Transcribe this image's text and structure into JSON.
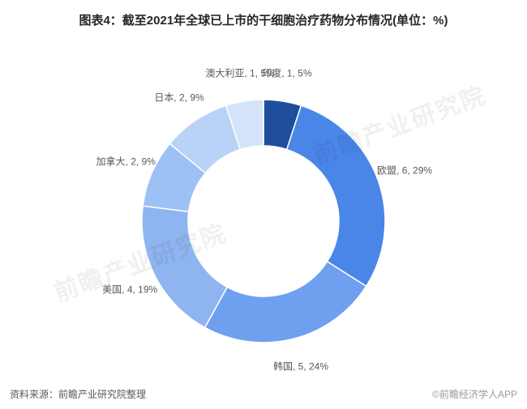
{
  "title": {
    "text": "图表4：截至2021年全球已上市的干细胞治疗药物分布情况(单位：%)",
    "fontsize": 15,
    "color": "#333333"
  },
  "footer": {
    "source_label": "资料来源：",
    "source_text": "前瞻产业研究院整理",
    "copyright": "©前瞻经济学人APP"
  },
  "watermark": {
    "text": "前瞻产业研究院"
  },
  "chart": {
    "type": "donut",
    "start_angle_deg": 0,
    "direction": "clockwise",
    "inner_radius_ratio": 0.62,
    "outer_radius": 150,
    "background_color": "#ffffff",
    "label_fontsize": 12,
    "label_color": "#595959",
    "slices": [
      {
        "name": "印度",
        "count": 1,
        "percent": 5,
        "color": "#1f4e9c",
        "label": "印度, 1, 5%"
      },
      {
        "name": "欧盟",
        "count": 6,
        "percent": 29,
        "color": "#4a86e8",
        "label": "欧盟, 6, 29%"
      },
      {
        "name": "韩国",
        "count": 5,
        "percent": 24,
        "color": "#6fa0ef",
        "label": "韩国, 5, 24%"
      },
      {
        "name": "美国",
        "count": 4,
        "percent": 19,
        "color": "#8fb5f0",
        "label": "美国, 4, 19%"
      },
      {
        "name": "加拿大",
        "count": 2,
        "percent": 9,
        "color": "#9cc1f4",
        "label": "加拿大, 2, 9%"
      },
      {
        "name": "日本",
        "count": 2,
        "percent": 9,
        "color": "#b9d2f7",
        "label": "日本, 2, 9%"
      },
      {
        "name": "澳大利亚",
        "count": 1,
        "percent": 5,
        "color": "#d5e3fa",
        "label": "澳大利亚, 1, 5%"
      }
    ]
  }
}
